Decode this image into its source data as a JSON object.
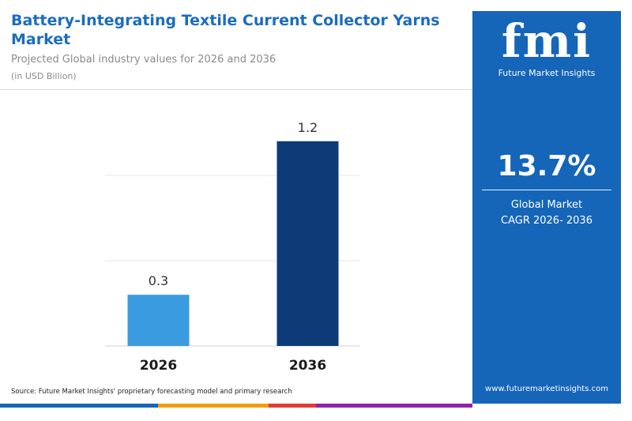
{
  "header": {
    "title": "Battery-Integrating Textile Current Collector Yarns Market",
    "subtitle": "Projected Global industry values for 2026 and 2036",
    "unit": "(in USD Billion)"
  },
  "chart_data": {
    "type": "bar",
    "categories": [
      "2026",
      "2036"
    ],
    "values": [
      0.3,
      1.2
    ],
    "value_labels": [
      "0.3",
      "1.2"
    ],
    "bar_colors": [
      "#3a9be0",
      "#0d3b78"
    ],
    "ylim": [
      0,
      1.5
    ],
    "grid": true,
    "legend": "none",
    "ylabel": "",
    "xlabel": ""
  },
  "source": "Source: Future Market Insights' proprietary forecasting model and primary research",
  "sidebar": {
    "logo_text": "fmi",
    "logo_sub": "Future Market Insights",
    "cagr_value": "13.7%",
    "cagr_label_line1": "Global Market",
    "cagr_label_line2": "CAGR 2026- 2036",
    "website": "www.futuremarketinsights.com"
  },
  "colors": {
    "title": "#1b6cc0",
    "sidebar_bg": "#1565b8",
    "bottom_bar": [
      "#1565b8",
      "#43a047",
      "#f39c12",
      "#e53935",
      "#8e24aa"
    ]
  }
}
